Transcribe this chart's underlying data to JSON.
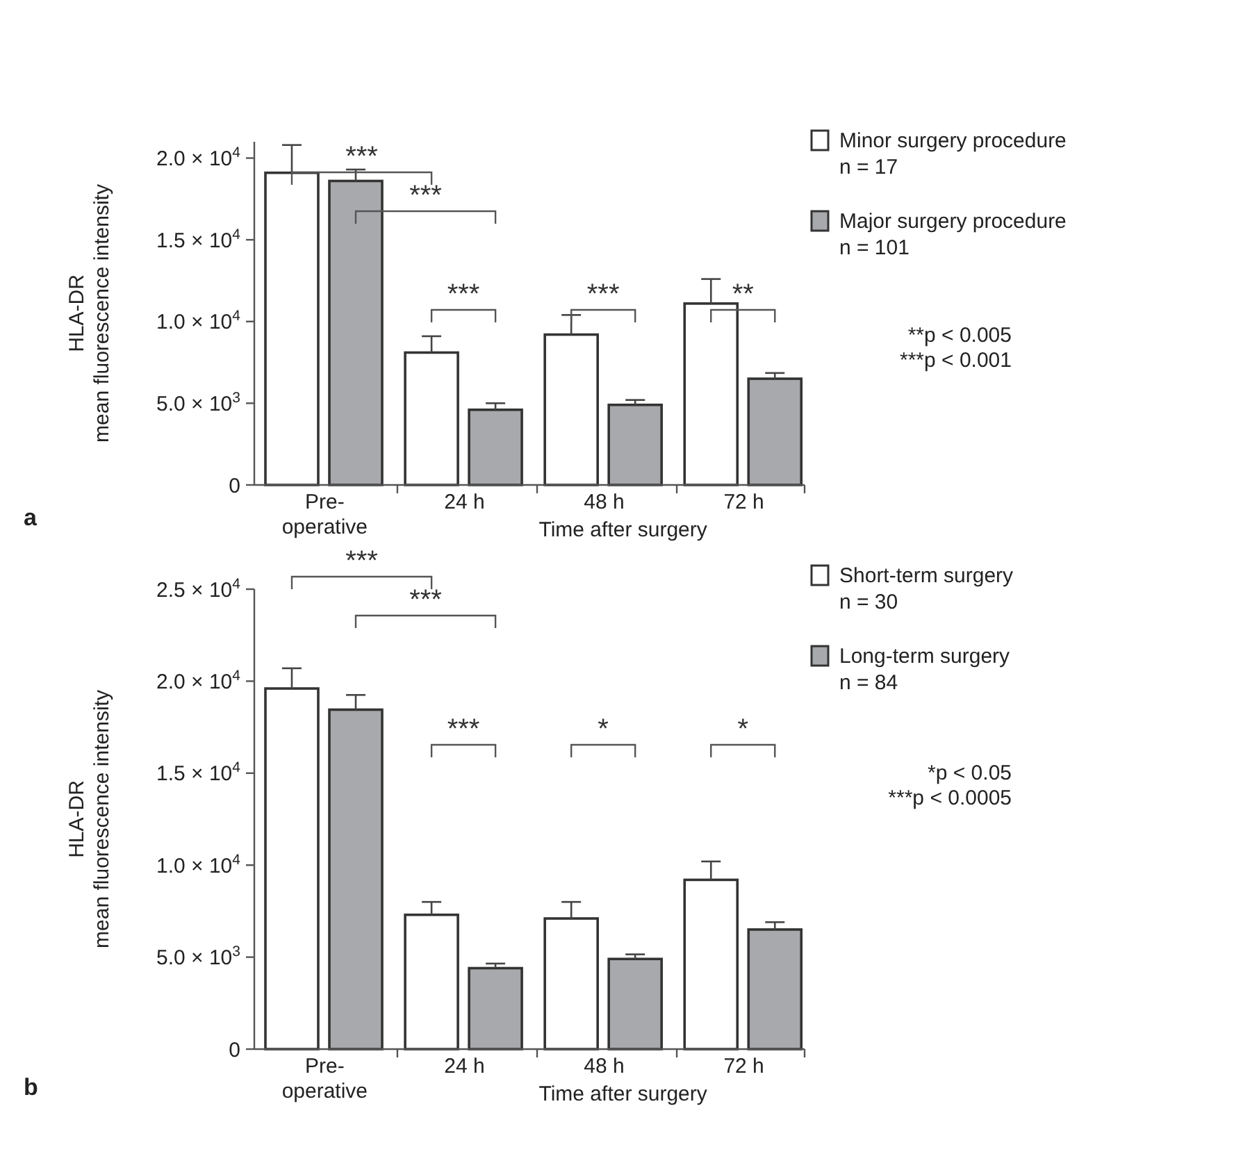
{
  "chart_data": [
    {
      "type": "bar",
      "categories": [
        "Pre-\noperative",
        "24 h",
        "48 h",
        "72 h"
      ],
      "xlabel": "Time after surgery",
      "ylabel": "HLA-DR\nmean fluorescence intensity",
      "ylim": [
        0,
        21000
      ],
      "yticks": [
        {
          "value": 0,
          "label": "0"
        },
        {
          "value": 5000,
          "label": "5.0 × 10$^{3}$"
        },
        {
          "value": 10000,
          "label": "1.0 × 10$^{4}$"
        },
        {
          "value": 15000,
          "label": "1.5 × 10$^{4}$"
        },
        {
          "value": 20000,
          "label": "2.0 × 10$^{4}$"
        }
      ],
      "series": [
        {
          "name": "Minor surgery procedure\nn = 17",
          "color": "#ffffff",
          "values": [
            19100,
            8100,
            9200,
            11100
          ],
          "errors": [
            [
              19100,
              20800
            ],
            [
              8100,
              9100
            ],
            [
              9200,
              10400
            ],
            [
              11100,
              12600
            ]
          ]
        },
        {
          "name": "Major surgery procedure\nn = 101",
          "color": "#a7a9ac",
          "values": [
            18600,
            4600,
            4900,
            6500
          ],
          "errors": [
            [
              18600,
              19300
            ],
            [
              4600,
              5000
            ],
            [
              4900,
              5200
            ],
            [
              6500,
              6850
            ]
          ]
        }
      ],
      "annotations": [
        "***",
        "***",
        "***",
        "***",
        "**",
        "**p < 0.005",
        "***p < 0.001",
        "a"
      ],
      "legend": "right",
      "grid": false
    },
    {
      "type": "bar",
      "categories": [
        "Pre-\noperative",
        "24 h",
        "48 h",
        "72 h"
      ],
      "xlabel": "Time after surgery",
      "ylabel": "HLA-DR\nmean fluorescence intensity",
      "ylim": [
        0,
        25000
      ],
      "yticks": [
        {
          "value": 0,
          "label": "0"
        },
        {
          "value": 5000,
          "label": "5.0 × 10$^{3}$"
        },
        {
          "value": 10000,
          "label": "1.0 × 10$^{4}$"
        },
        {
          "value": 15000,
          "label": "1.5 × 10$^{4}$"
        },
        {
          "value": 20000,
          "label": "2.0 × 10$^{4}$"
        },
        {
          "value": 25000,
          "label": "2.5 × 10$^{4}$"
        }
      ],
      "series": [
        {
          "name": "Short-term surgery\nn = 30",
          "color": "#ffffff",
          "values": [
            19600,
            7300,
            7100,
            9200
          ],
          "errors": [
            [
              19600,
              20700
            ],
            [
              7300,
              8000
            ],
            [
              7100,
              8000
            ],
            [
              9200,
              10200
            ]
          ]
        },
        {
          "name": "Long-term surgery\nn = 84",
          "color": "#a7a9ac",
          "values": [
            18450,
            4400,
            4900,
            6500
          ],
          "errors": [
            [
              18450,
              19250
            ],
            [
              4400,
              4650
            ],
            [
              4900,
              5150
            ],
            [
              6500,
              6900
            ]
          ]
        }
      ],
      "annotations": [
        "***",
        "***",
        "***",
        "*",
        "*",
        "*p < 0.05",
        "***p < 0.0005",
        "b"
      ],
      "legend": "right",
      "grid": false
    }
  ]
}
